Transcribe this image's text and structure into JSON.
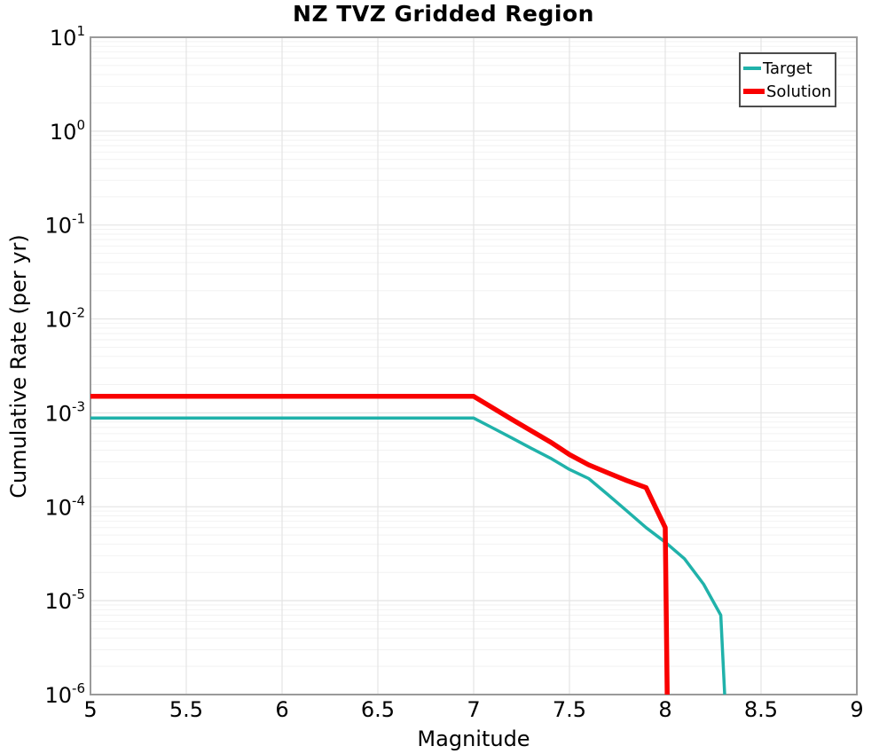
{
  "chart_data": {
    "type": "line",
    "title": "NZ TVZ Gridded Region",
    "xlabel": "Magnitude",
    "ylabel": "Cumulative Rate (per yr)",
    "x_axis": {
      "min": 5,
      "max": 9,
      "tick_values": [
        5,
        5.5,
        6,
        6.5,
        7,
        7.5,
        8,
        8.5,
        9
      ],
      "tick_labels": [
        "5",
        "5.5",
        "6",
        "6.5",
        "7",
        "7.5",
        "8",
        "8.5",
        "9"
      ]
    },
    "y_axis": {
      "scale": "log",
      "min": 1e-06,
      "max": 10,
      "tick_base": "10",
      "tick_exponents": [
        1,
        0,
        -1,
        -2,
        -3,
        -4,
        -5,
        -6
      ]
    },
    "grid": {
      "major": true,
      "minor_log": true
    },
    "legend": {
      "position": "top-right",
      "entries": [
        {
          "label": "Target",
          "color": "#20b2aa",
          "sample_width": 20,
          "sample_thickness": 4
        },
        {
          "label": "Solution",
          "color": "#f90000",
          "sample_width": 24,
          "sample_thickness": 6
        }
      ]
    },
    "series": [
      {
        "name": "Target",
        "color": "#20b2aa",
        "line_width": 3.5,
        "points": [
          [
            5.0,
            0.00088
          ],
          [
            7.0,
            0.00088
          ],
          [
            7.1,
            0.00069
          ],
          [
            7.2,
            0.00054
          ],
          [
            7.3,
            0.00042
          ],
          [
            7.4,
            0.00033
          ],
          [
            7.5,
            0.00025
          ],
          [
            7.6,
            0.0002
          ],
          [
            7.7,
            0.000135
          ],
          [
            7.8,
            9e-05
          ],
          [
            7.9,
            6e-05
          ],
          [
            8.0,
            4.2e-05
          ],
          [
            8.1,
            2.8e-05
          ],
          [
            8.2,
            1.5e-05
          ],
          [
            8.29,
            7e-06
          ],
          [
            8.31,
            1e-06
          ]
        ]
      },
      {
        "name": "Solution",
        "color": "#f90000",
        "line_width": 5.5,
        "points": [
          [
            5.0,
            0.0015
          ],
          [
            7.0,
            0.0015
          ],
          [
            7.2,
            0.00085
          ],
          [
            7.4,
            0.00049
          ],
          [
            7.5,
            0.00036
          ],
          [
            7.6,
            0.00028
          ],
          [
            7.7,
            0.00023
          ],
          [
            7.8,
            0.00019
          ],
          [
            7.9,
            0.00016
          ],
          [
            8.0,
            6e-05
          ],
          [
            8.01,
            1e-06
          ]
        ]
      }
    ],
    "colors": {
      "frame": "#9a9a9a",
      "grid_major": "#e4e4e4",
      "grid_minor": "#f2f2f2",
      "background": "#ffffff",
      "text": "#000000"
    }
  }
}
